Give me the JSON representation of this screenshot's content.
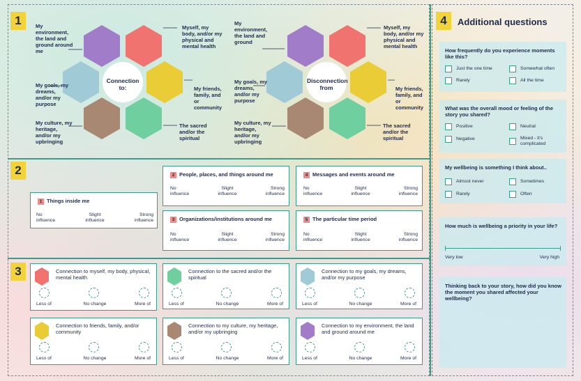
{
  "section1": {
    "number": "1",
    "flower_left": {
      "center": "Connection to:",
      "labels": [
        "My environment, the land and ground around me",
        "Myself, my body, and/or my physical and mental health",
        "My friends, family, and or community",
        "The sacred and/or the spiritual",
        "My culture, my heritage, and/or my upbringing",
        "My goals, my dreams, and/or my purpose"
      ]
    },
    "flower_right": {
      "center": "Disconnection from",
      "labels": [
        "My environment, the land and ground",
        "Myself, my body, and/or my physical and mental health",
        "My friends, family, and or community",
        "The sacred and/or the spiritual",
        "My culture, my heritage, and/or my upbringing",
        "My goals, my dreams, and/or my purpose"
      ]
    }
  },
  "section2": {
    "number": "2",
    "boxes": [
      {
        "num": "1",
        "title": "Things inside me",
        "scale": [
          "No influence",
          "Slight influence",
          "Strong influence"
        ]
      },
      {
        "num": "2",
        "title": "People, places, and things around me",
        "scale": [
          "No influence",
          "Slight influence",
          "Strong influence"
        ]
      },
      {
        "num": "3",
        "title": "Organizations/institutions around me",
        "scale": [
          "No influence",
          "Slight influence",
          "Strong influence"
        ]
      },
      {
        "num": "4",
        "title": "Messages and events around me",
        "scale": [
          "No influence",
          "Slight influence",
          "Strong influence"
        ]
      },
      {
        "num": "5",
        "title": "The particular time period",
        "scale": [
          "No influence",
          "Slight influence",
          "Strong influence"
        ]
      }
    ]
  },
  "section3": {
    "number": "3",
    "scale": [
      "Less of",
      "No change",
      "More of"
    ],
    "cards": [
      {
        "text": "Connection to myself, my body, physical, mental health",
        "color": "#f0736f"
      },
      {
        "text": "Connection to the sacred and/or the spiritual",
        "color": "#6fcf9e"
      },
      {
        "text": "Connection to my goals, my dreams, and/or my purpose",
        "color": "#9fcad6"
      },
      {
        "text": "Connection to friends, family, and/or community",
        "color": "#e9cc36"
      },
      {
        "text": "Connection to my culture, my heritage, and/or my upbringing",
        "color": "#a88872"
      },
      {
        "text": "Connection to my environment, the land and ground around me",
        "color": "#a17cc9"
      }
    ]
  },
  "section4": {
    "number": "4",
    "title": "Additional questions",
    "q1": {
      "text": "How frequently do you experience moments like this?",
      "options": [
        "Just the one time",
        "Somewhat often",
        "Rarely",
        "All the time"
      ]
    },
    "q2": {
      "text": "What was the overall mood or feeling of the story you shared?",
      "options": [
        "Positive",
        "Neutral",
        "Negative",
        "Mixed - it's complicated"
      ]
    },
    "q3": {
      "text": "My wellbeing is something I think about..",
      "options": [
        "Almost never",
        "Sometimes",
        "Rarely",
        "Often"
      ]
    },
    "q4": {
      "text": "How much is wellbeing a priority in your life?",
      "low": "Very low",
      "high": "Very high"
    },
    "q5": {
      "text": "Thinking back to your story, how did you know the moment you shared affected your wellbeing?"
    }
  },
  "colors": {
    "purple": "#a17cc9",
    "red": "#f0736f",
    "yellow": "#e9cc36",
    "green": "#6fcf9e",
    "brown": "#a88872",
    "blue": "#9fcad6",
    "teal": "#3a9b8b"
  }
}
